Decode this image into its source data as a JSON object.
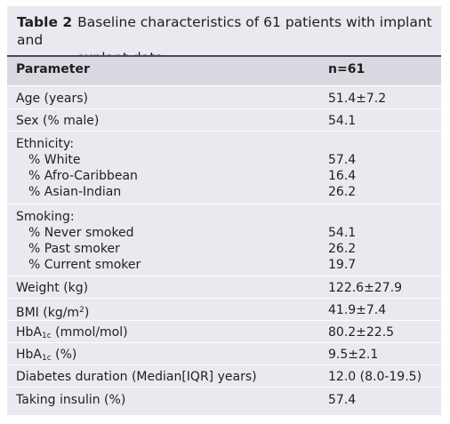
{
  "caption": {
    "label": "Table 2",
    "text_line1": "Baseline characteristics of 61 patients with implant and",
    "text_line2": "explant data"
  },
  "columns": {
    "parameter": "Parameter",
    "value": "n=61"
  },
  "rows": {
    "age": {
      "label": "Age (years)",
      "value": "51.4±7.2"
    },
    "sex": {
      "label": "Sex (% male)",
      "value": "54.1"
    },
    "ethnicity": {
      "label": "Ethnicity:",
      "items": [
        {
          "label": "% White",
          "value": "57.4"
        },
        {
          "label": "% Afro-Caribbean",
          "value": "16.4"
        },
        {
          "label": "% Asian-Indian",
          "value": "26.2"
        }
      ]
    },
    "smoking": {
      "label": "Smoking:",
      "items": [
        {
          "label": "% Never smoked",
          "value": "54.1"
        },
        {
          "label": "% Past smoker",
          "value": "26.2"
        },
        {
          "label": "% Current smoker",
          "value": "19.7"
        }
      ]
    },
    "weight": {
      "label": "Weight (kg)",
      "value": "122.6±27.9"
    },
    "bmi": {
      "label_main": "BMI (kg/m",
      "label_sup": "2",
      "label_end": ")",
      "value": "41.9±7.4"
    },
    "hba1c_mmol": {
      "label_main": "HbA",
      "label_sub": "1c",
      "label_end": " (mmol/mol)",
      "value": "80.2±22.5"
    },
    "hba1c_pct": {
      "label_main": "HbA",
      "label_sub": "1c",
      "label_end": " (%)",
      "value": "9.5±2.1"
    },
    "diabetes_duration": {
      "label": "Diabetes duration (Median[IQR] years)",
      "value": "12.0 (8.0-19.5)"
    },
    "insulin": {
      "label": "Taking insulin (%)",
      "value": "57.4"
    }
  },
  "colors": {
    "card_background": "#e9eaef",
    "header_background": "#d8d9e1",
    "rule": "#4a4a55"
  }
}
